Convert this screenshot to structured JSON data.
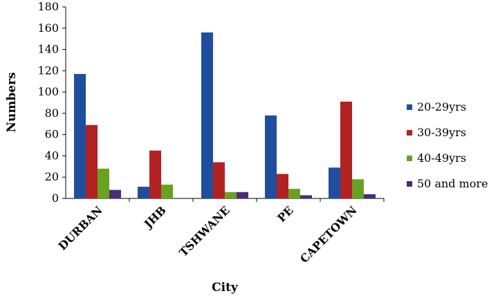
{
  "chart_data": {
    "type": "bar",
    "title": "",
    "xlabel": "City",
    "ylabel": "Numbers",
    "ylim": [
      0,
      180
    ],
    "yticks": [
      0,
      20,
      40,
      60,
      80,
      100,
      120,
      140,
      160,
      180
    ],
    "grid": false,
    "legend_position": "right",
    "categories": [
      "DURBAN",
      "JHB",
      "TSHWANE",
      "PE",
      "CAPETOWN"
    ],
    "series": [
      {
        "name": "20-29yrs",
        "color": "#1f4e9e",
        "values": [
          117,
          11,
          156,
          78,
          29
        ]
      },
      {
        "name": "30-39yrs",
        "color": "#b22222",
        "values": [
          69,
          45,
          34,
          23,
          91
        ]
      },
      {
        "name": "40-49yrs",
        "color": "#6aa121",
        "values": [
          28,
          13,
          6,
          9,
          18
        ]
      },
      {
        "name": "50 and more",
        "color": "#4a2c7a",
        "values": [
          8,
          0,
          6,
          3,
          4
        ]
      }
    ]
  }
}
